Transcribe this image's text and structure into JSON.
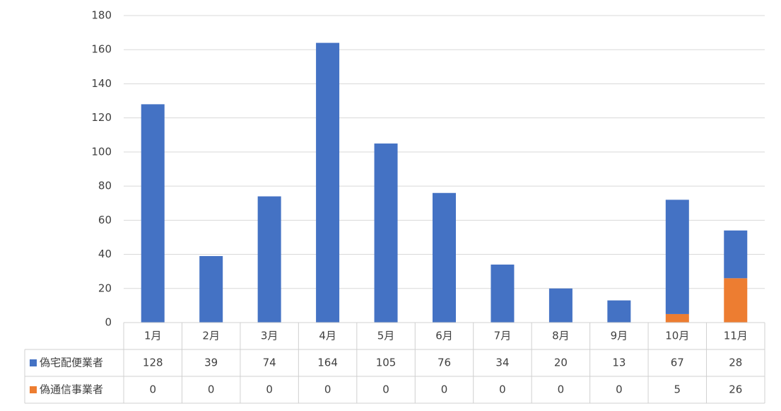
{
  "chart_data": {
    "type": "stacked-bar",
    "categories": [
      "1月",
      "2月",
      "3月",
      "4月",
      "5月",
      "6月",
      "7月",
      "8月",
      "9月",
      "10月",
      "11月"
    ],
    "series": [
      {
        "name": "偽宅配便業者",
        "color": "#4472c4",
        "values": [
          128,
          39,
          74,
          164,
          105,
          76,
          34,
          20,
          13,
          67,
          28
        ]
      },
      {
        "name": "偽通信事業者",
        "color": "#ed7d31",
        "values": [
          0,
          0,
          0,
          0,
          0,
          0,
          0,
          0,
          0,
          5,
          26
        ]
      }
    ],
    "ylim": [
      0,
      180
    ],
    "yticks": [
      0,
      20,
      40,
      60,
      80,
      100,
      120,
      140,
      160,
      180
    ],
    "grid": true
  }
}
